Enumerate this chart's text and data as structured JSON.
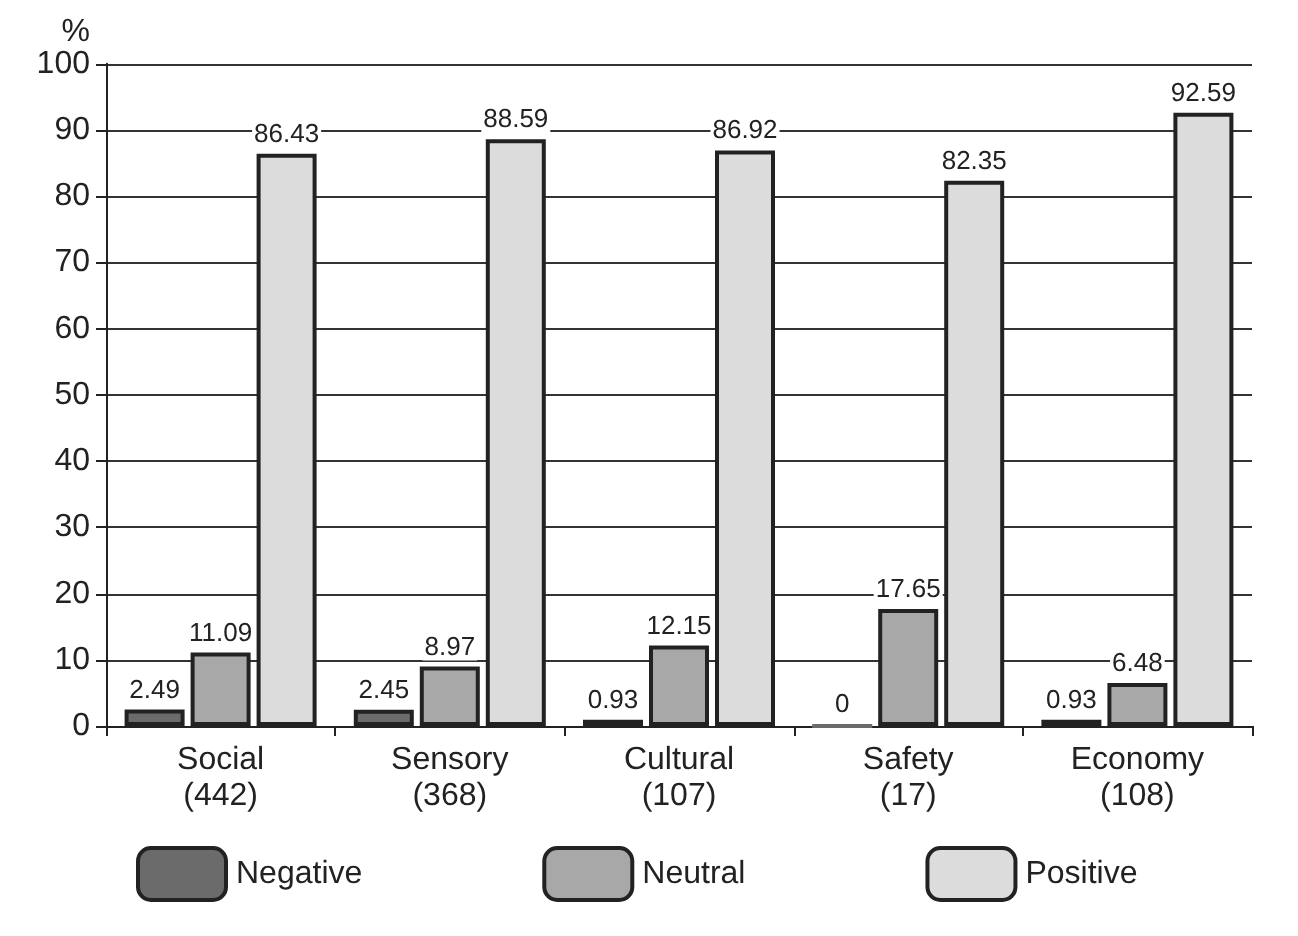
{
  "chart_data": {
    "type": "bar",
    "ylabel": "%",
    "categories": [
      "Social\n(442)",
      "Sensory\n(368)",
      "Cultural\n(107)",
      "Safety\n(17)",
      "Economy\n(108)"
    ],
    "series": [
      {
        "name": "Negative",
        "color": "#6b6b6b",
        "values": [
          2.49,
          2.45,
          0.93,
          0,
          0.93
        ]
      },
      {
        "name": "Neutral",
        "color": "#a8a8a8",
        "values": [
          11.09,
          8.97,
          12.15,
          17.65,
          6.48
        ]
      },
      {
        "name": "Positive",
        "color": "#dcdcdc",
        "values": [
          86.43,
          88.59,
          86.92,
          82.35,
          92.59
        ]
      }
    ],
    "ylim": [
      0,
      100
    ],
    "yticks": [
      0,
      10,
      20,
      30,
      40,
      50,
      60,
      70,
      80,
      90,
      100
    ],
    "grid": "y",
    "legend": "bottom",
    "data_labels": true
  }
}
